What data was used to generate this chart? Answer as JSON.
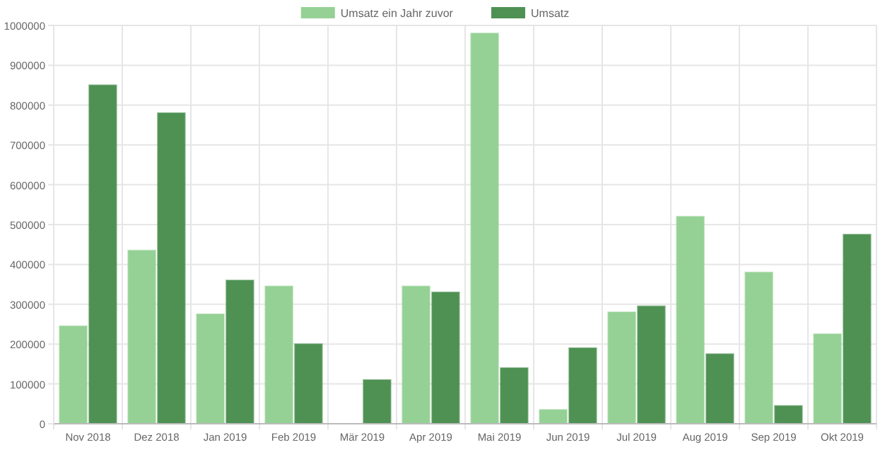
{
  "chart_data": {
    "type": "bar",
    "categories": [
      "Nov 2018",
      "Dez 2018",
      "Jan 2019",
      "Feb 2019",
      "Mär 2019",
      "Apr 2019",
      "Mai 2019",
      "Jun 2019",
      "Jul 2019",
      "Aug 2019",
      "Sep 2019",
      "Okt 2019"
    ],
    "series": [
      {
        "name": "Umsatz ein Jahr zuvor",
        "color": "#95d195",
        "values": [
          245000,
          435000,
          275000,
          345000,
          0,
          345000,
          980000,
          35000,
          280000,
          520000,
          380000,
          225000
        ]
      },
      {
        "name": "Umsatz",
        "color": "#4e9153",
        "values": [
          850000,
          780000,
          360000,
          200000,
          110000,
          330000,
          140000,
          190000,
          295000,
          175000,
          45000,
          475000
        ]
      }
    ],
    "ylim": [
      0,
      1000000
    ],
    "yticks": [
      0,
      100000,
      200000,
      300000,
      400000,
      500000,
      600000,
      700000,
      800000,
      900000,
      1000000
    ],
    "grid": true,
    "legend": "top"
  }
}
